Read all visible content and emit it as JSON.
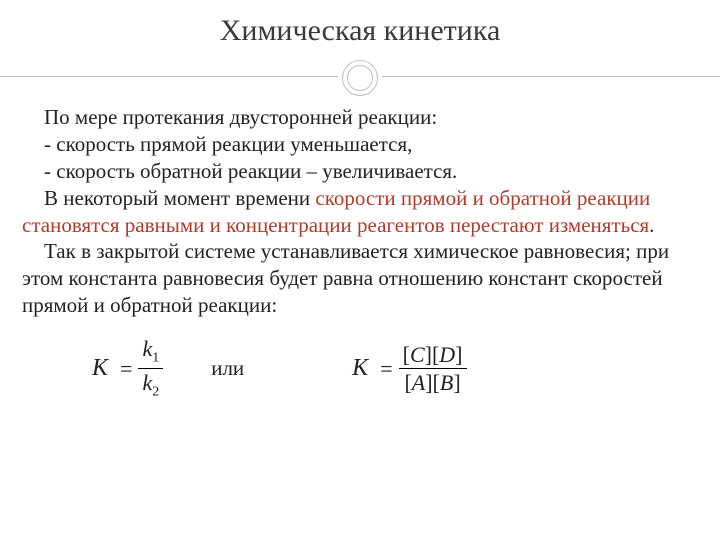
{
  "title": "Химическая кинетика",
  "colors": {
    "text": "#222222",
    "emphasis": "#b43a2a",
    "divider": "#bfbfbf",
    "title": "#3a3a3a",
    "background": "#ffffff"
  },
  "typography": {
    "title_fontsize_pt": 22,
    "body_fontsize_pt": 16,
    "font_family": "Georgia / Times-like serif"
  },
  "paragraphs": {
    "p1": "По мере протекания двусторонней реакции:",
    "p2": "- скорость прямой реакции уменьшается,",
    "p3": "- скорость обратной реакции – увеличивается.",
    "p4a": "В некоторый момент времени ",
    "p4b_red": "скорости прямой и обратной реакции становятся равными и концентрации реагентов перестают изменяться",
    "p4c": ".",
    "p5": "Так в закрытой системе устанавливается химическое равновесия; при этом константа равновесия будет равна отношению констант скоростей прямой и обратной реакции:"
  },
  "formulas": {
    "K_symbol": "K",
    "equals": "=",
    "f1_num_k": "k",
    "f1_num_sub": "1",
    "f1_den_k": "k",
    "f1_den_sub": "2",
    "or_word": "или",
    "f2_num": "[C][D]",
    "f2_den": "[A][B]"
  }
}
